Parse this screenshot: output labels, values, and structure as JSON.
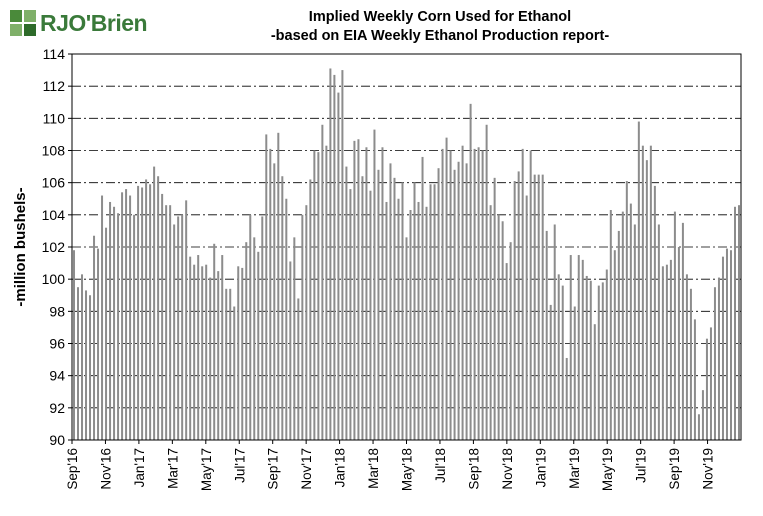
{
  "logo": {
    "text": "RJO'Brien"
  },
  "chart_data": {
    "type": "bar",
    "title": "Implied  Weekly Corn Used for Ethanol",
    "subtitle": "-based on EIA Weekly Ethanol Production report-",
    "xlabel": "",
    "ylabel": "-million bushels-",
    "ylim": [
      90,
      114
    ],
    "yticks": [
      90,
      92,
      94,
      96,
      98,
      100,
      102,
      104,
      106,
      108,
      110,
      112,
      114
    ],
    "grid": true,
    "x_tick_labels": [
      "Sep'16",
      "Nov'16",
      "Jan'17",
      "Mar'17",
      "May'17",
      "Jul'17",
      "Sep'17",
      "Nov'17",
      "Jan'18",
      "Mar'18",
      "May'18",
      "Jul'18",
      "Sep'18",
      "Nov'18",
      "Jan'19",
      "Mar'19",
      "May'19",
      "Jul'19",
      "Sep'19",
      "Nov'19"
    ],
    "bar_color": "#8c8c8c",
    "values": [
      101.8,
      99.5,
      100.3,
      99.3,
      99.0,
      102.7,
      101.9,
      105.2,
      103.2,
      104.8,
      104.5,
      104.1,
      105.4,
      105.6,
      105.2,
      104.0,
      105.8,
      105.7,
      106.2,
      105.9,
      107.0,
      106.4,
      105.3,
      104.6,
      104.6,
      103.4,
      103.9,
      104.0,
      104.9,
      101.4,
      100.9,
      101.5,
      100.8,
      100.9,
      100.1,
      102.2,
      100.5,
      101.5,
      99.4,
      99.4,
      98.3,
      100.8,
      100.7,
      102.3,
      104.0,
      102.6,
      101.7,
      103.9,
      109.0,
      108.1,
      107.2,
      109.1,
      106.4,
      105.0,
      101.1,
      102.6,
      98.8,
      104.0,
      104.6,
      106.2,
      108.0,
      107.9,
      109.6,
      108.3,
      113.1,
      112.7,
      111.6,
      113.0,
      107.0,
      105.6,
      108.6,
      108.7,
      106.4,
      108.2,
      105.5,
      109.3,
      106.8,
      108.2,
      104.8,
      107.2,
      106.3,
      105.0,
      106.0,
      102.6,
      104.3,
      106.0,
      104.8,
      107.6,
      104.5,
      105.9,
      105.9,
      106.9,
      108.1,
      108.8,
      108.0,
      106.8,
      107.3,
      108.3,
      107.2,
      110.9,
      108.1,
      108.2,
      108.0,
      109.6,
      104.6,
      106.3,
      104.0,
      103.6,
      101.0,
      102.3,
      106.1,
      106.7,
      108.1,
      105.2,
      108.0,
      106.5,
      106.5,
      106.5,
      103.0,
      98.4,
      103.4,
      100.3,
      99.6,
      95.1,
      101.5,
      98.3,
      101.5,
      101.2,
      100.2,
      99.9,
      97.2,
      99.6,
      99.8,
      100.6,
      104.3,
      101.8,
      103.0,
      104.2,
      106.1,
      104.7,
      103.4,
      109.8,
      108.3,
      107.4,
      108.3,
      105.8,
      103.4,
      100.8,
      100.9,
      101.2,
      104.2,
      102.0,
      103.5,
      100.3,
      99.4,
      97.5,
      91.6,
      93.1,
      96.3,
      97.0,
      99.5,
      100.1,
      101.4,
      101.9,
      101.8,
      104.5,
      104.6
    ]
  }
}
